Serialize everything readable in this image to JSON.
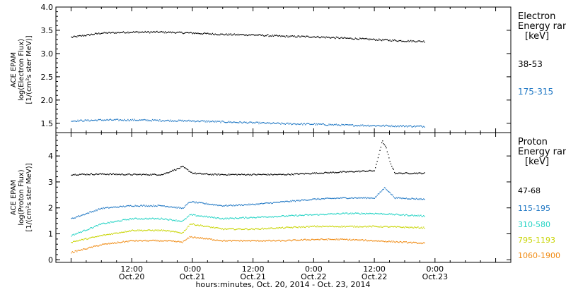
{
  "chart_data": [
    {
      "type": "scatter",
      "panel": "electron",
      "ylabel_lines": [
        "ACE EPAM",
        "log(Electron Flux)",
        "[1/(cm²s ster MeV)]"
      ],
      "ylim": [
        1.3,
        4.0
      ],
      "yticks": [
        1.5,
        2.0,
        2.5,
        3.0,
        3.5,
        4.0
      ],
      "ytick_labels": [
        "1.5",
        "2.0",
        "2.5",
        "3.0",
        "3.5",
        "4.0"
      ],
      "legend_title": [
        "Electron",
        "Energy ranges",
        "[keV]"
      ],
      "series": [
        {
          "name": "38-53",
          "color": "#000000",
          "x": [
            0,
            6,
            12,
            18,
            24,
            30,
            36,
            42,
            48,
            54,
            60,
            66,
            70
          ],
          "y": [
            3.36,
            3.45,
            3.47,
            3.47,
            3.45,
            3.42,
            3.41,
            3.38,
            3.37,
            3.34,
            3.31,
            3.28,
            3.27
          ]
        },
        {
          "name": "175-315",
          "color": "#1f77c4",
          "x": [
            0,
            6,
            12,
            18,
            24,
            30,
            36,
            42,
            48,
            54,
            60,
            66,
            70
          ],
          "y": [
            1.56,
            1.58,
            1.58,
            1.57,
            1.56,
            1.54,
            1.52,
            1.5,
            1.49,
            1.47,
            1.46,
            1.45,
            1.44
          ]
        }
      ]
    },
    {
      "type": "scatter",
      "panel": "proton",
      "ylabel_lines": [
        "ACE EPAM",
        "log(Proton Flux)",
        "[1/(cm²s ster MeV)]"
      ],
      "ylim": [
        -0.1,
        4.9
      ],
      "yticks": [
        0,
        1,
        2,
        3,
        4
      ],
      "ytick_labels": [
        "0",
        "1",
        "2",
        "3",
        "4"
      ],
      "legend_title": [
        "Proton",
        "Energy ranges",
        "[keV]"
      ],
      "series": [
        {
          "name": "47-68",
          "color": "#000000",
          "x": [
            0,
            6,
            12,
            18,
            22,
            24,
            28,
            36,
            42,
            48,
            54,
            60,
            61.5,
            62.3,
            63,
            64,
            70
          ],
          "y": [
            3.3,
            3.32,
            3.3,
            3.3,
            3.6,
            3.35,
            3.3,
            3.3,
            3.3,
            3.35,
            3.4,
            3.45,
            4.6,
            4.3,
            3.8,
            3.35,
            3.35
          ]
        },
        {
          "name": "115-195",
          "color": "#1f77c4",
          "x": [
            0,
            6,
            12,
            18,
            22,
            23.5,
            30,
            36,
            42,
            48,
            54,
            60,
            62,
            64,
            70
          ],
          "y": [
            1.6,
            2.0,
            2.1,
            2.1,
            2.0,
            2.25,
            2.1,
            2.15,
            2.25,
            2.35,
            2.4,
            2.4,
            2.8,
            2.4,
            2.35
          ]
        },
        {
          "name": "310-580",
          "color": "#22d3c4",
          "x": [
            0,
            6,
            12,
            18,
            22,
            23.5,
            30,
            36,
            42,
            48,
            54,
            60,
            70
          ],
          "y": [
            0.95,
            1.4,
            1.6,
            1.6,
            1.5,
            1.75,
            1.6,
            1.65,
            1.7,
            1.75,
            1.8,
            1.8,
            1.7
          ]
        },
        {
          "name": "795-1193",
          "color": "#c8d400",
          "x": [
            0,
            6,
            12,
            18,
            22,
            23.5,
            30,
            36,
            42,
            48,
            54,
            60,
            70
          ],
          "y": [
            0.7,
            0.95,
            1.15,
            1.15,
            1.05,
            1.4,
            1.2,
            1.2,
            1.25,
            1.3,
            1.3,
            1.3,
            1.25
          ]
        },
        {
          "name": "1060-1900",
          "color": "#f08a12",
          "x": [
            0,
            6,
            12,
            18,
            22,
            23.5,
            30,
            36,
            42,
            48,
            54,
            60,
            70
          ],
          "y": [
            0.3,
            0.6,
            0.75,
            0.75,
            0.7,
            0.9,
            0.75,
            0.75,
            0.75,
            0.8,
            0.8,
            0.75,
            0.65
          ]
        }
      ]
    }
  ],
  "x_axis": {
    "xlim": [
      -3,
      87
    ],
    "major_ticks": [
      12,
      24,
      36,
      48,
      60
    ],
    "tick_time_labels": [
      "12:00",
      "0:00",
      "12:00",
      "0:00",
      "12:00"
    ],
    "tick_date_labels": [
      "Oct.20",
      "Oct.21",
      "Oct.21",
      "Oct.22",
      "Oct.22"
    ],
    "last_tick": {
      "time": "0:00",
      "date": "Oct.23"
    },
    "xlabel": "hours:minutes, Oct. 20, 2014 - Oct. 23, 2014"
  }
}
